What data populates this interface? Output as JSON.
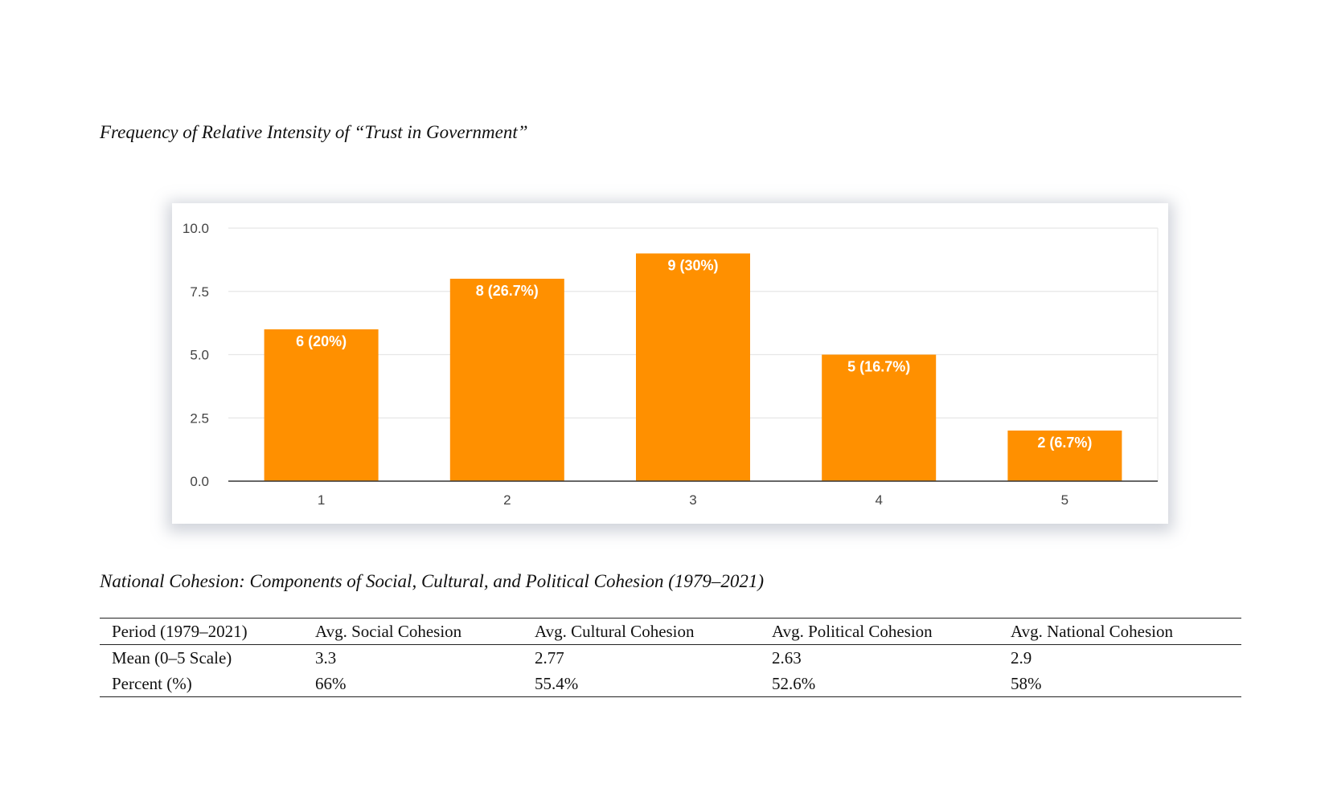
{
  "figure": {
    "caption": "Frequency of Relative Intensity of “Trust in Government”"
  },
  "chart_data": {
    "type": "bar",
    "categories": [
      "1",
      "2",
      "3",
      "4",
      "5"
    ],
    "values": [
      6,
      8,
      9,
      5,
      2
    ],
    "data_labels": [
      "6 (20%)",
      "8 (26.7%)",
      "9 (30%)",
      "5 (16.7%)",
      "2 (6.7%)"
    ],
    "title": "",
    "xlabel": "",
    "ylabel": "",
    "ylim": [
      0,
      10
    ],
    "yticks": [
      "0.0",
      "2.5",
      "5.0",
      "7.5",
      "10.0"
    ],
    "ytick_values": [
      0,
      2.5,
      5,
      7.5,
      10
    ],
    "grid": true,
    "legend": "none",
    "bar_color": "#ff9000"
  },
  "table": {
    "caption": "National Cohesion: Components of Social, Cultural, and Political Cohesion (1979–2021)",
    "headers": [
      "Period (1979–2021)",
      "Avg. Social Cohesion",
      "Avg. Cultural Cohesion",
      "Avg. Political Cohesion",
      "Avg. National Cohesion"
    ],
    "rows": [
      [
        "Mean (0–5 Scale)",
        "3.3",
        "2.77",
        "2.63",
        "2.9"
      ],
      [
        "Percent (%)",
        "66%",
        "55.4%",
        "52.6%",
        "58%"
      ]
    ]
  }
}
